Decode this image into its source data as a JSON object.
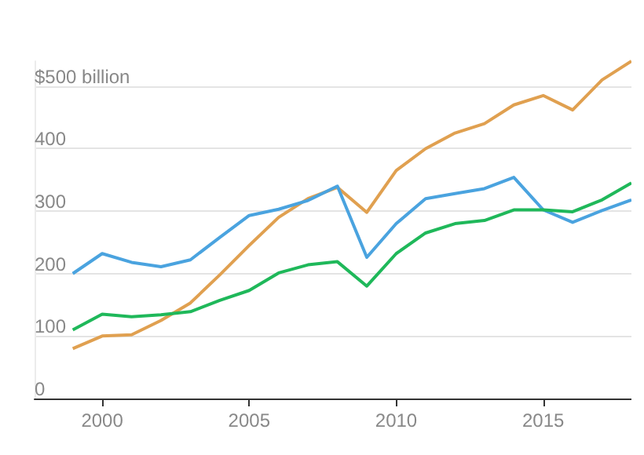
{
  "chart_data": {
    "type": "line",
    "x": [
      1999,
      2000,
      2001,
      2002,
      2003,
      2004,
      2005,
      2006,
      2007,
      2008,
      2009,
      2010,
      2011,
      2012,
      2013,
      2014,
      2015,
      2016,
      2017,
      2018
    ],
    "series": [
      {
        "color": "#e0a050",
        "values": [
          80,
          100,
          102,
          125,
          153,
          198,
          245,
          290,
          320,
          338,
          298,
          365,
          400,
          425,
          440,
          470,
          485,
          462,
          510,
          540
        ]
      },
      {
        "color": "#4aa3df",
        "values": [
          200,
          232,
          218,
          211,
          222,
          258,
          293,
          303,
          317,
          340,
          226,
          280,
          320,
          328,
          336,
          354,
          302,
          282,
          301,
          318
        ]
      },
      {
        "color": "#1fb85a",
        "values": [
          110,
          135,
          131,
          134,
          139,
          157,
          173,
          201,
          214,
          219,
          180,
          232,
          265,
          280,
          285,
          302,
          302,
          299,
          318,
          345
        ]
      }
    ],
    "xlim": [
      1997.7,
      2018
    ],
    "xticks": [
      2000,
      2005,
      2010,
      2015
    ],
    "ylim": [
      0,
      540
    ],
    "yticks": [
      0,
      100,
      200,
      300,
      400,
      {
        "value": 500,
        "label": "$500 billion"
      }
    ],
    "grid": "y",
    "marker": "none",
    "line_style": "solid"
  }
}
